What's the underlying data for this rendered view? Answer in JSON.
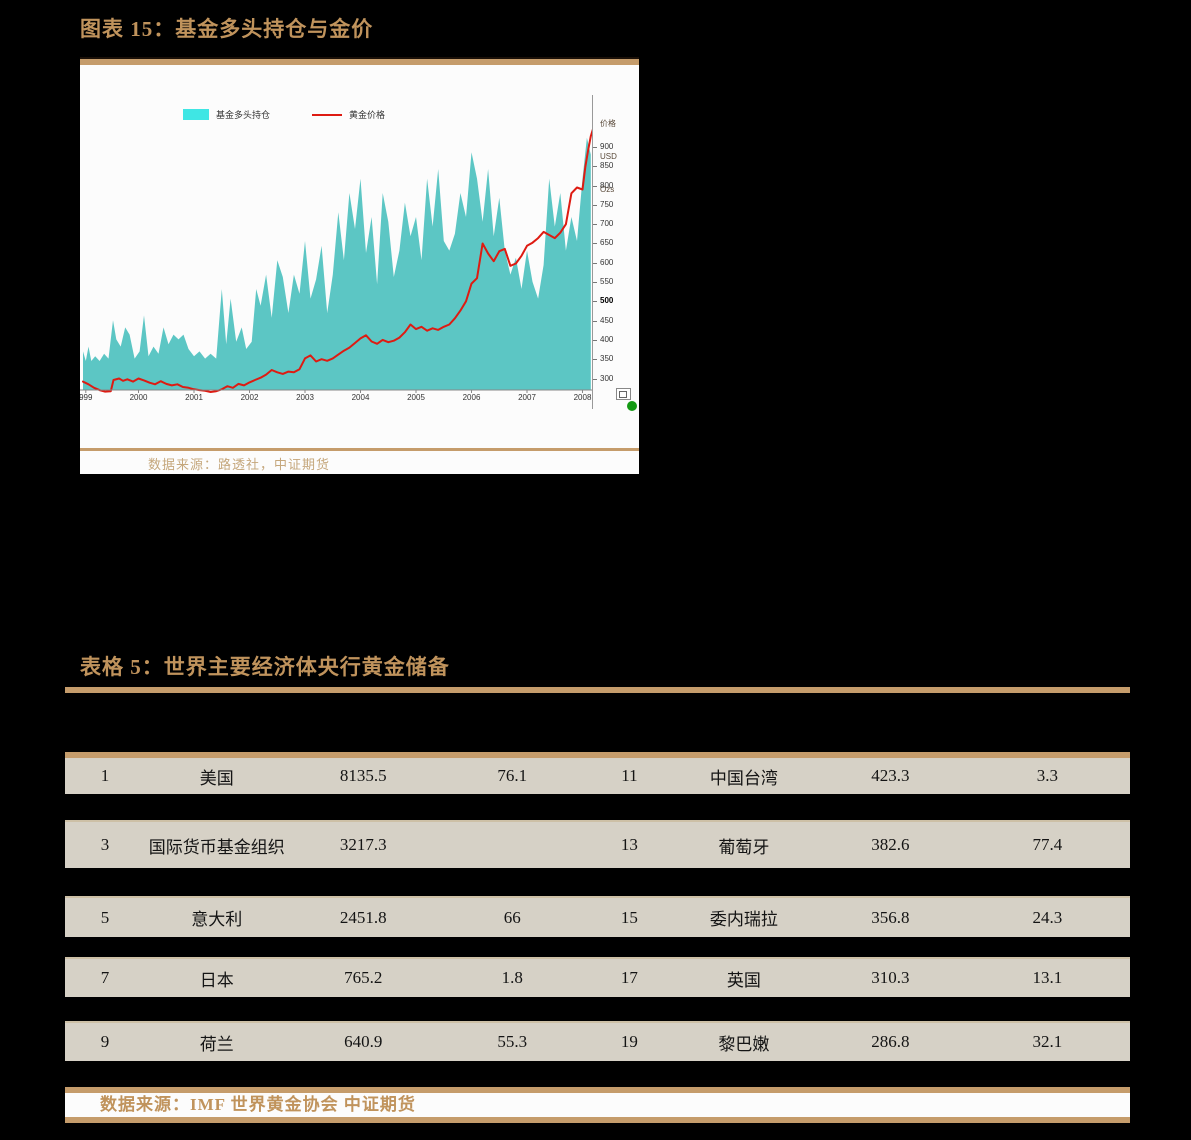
{
  "figure": {
    "title": "图表 15：基金多头持仓与金价",
    "source": "数据来源：路透社，中证期货",
    "legend": [
      {
        "label": "基金多头持仓",
        "swatch_color": "#3FE6E4",
        "type": "area"
      },
      {
        "label": "黄金价格",
        "swatch_color": "#DE1B12",
        "type": "line"
      }
    ],
    "y_axis_header": [
      "价格",
      "USD",
      "Ozs"
    ]
  },
  "chart_data": {
    "type": "area+line",
    "title": "基金多头持仓与金价",
    "x_tick_labels": [
      "999",
      "2000",
      "2001",
      "2002",
      "2003",
      "2004",
      "2005",
      "2006",
      "2007",
      "2008"
    ],
    "x_tick_years": [
      1999.05,
      2000,
      2001,
      2002,
      2003,
      2004,
      2005,
      2006,
      2007,
      2008
    ],
    "y_ticks_right": [
      300,
      350,
      400,
      450,
      500,
      550,
      600,
      650,
      700,
      750,
      800,
      850,
      900
    ],
    "y_right_label": "价格 USD Ozs",
    "x_range": [
      1999,
      2008.6
    ],
    "y_right_range": [
      300,
      960
    ],
    "grid": false,
    "legend_position": "top-left",
    "series": [
      {
        "name": "基金多头持仓",
        "type": "area",
        "color": "#5CC6C4",
        "unit": "持仓指数（左轴未标注）",
        "points": [
          [
            1999.0,
            14
          ],
          [
            1999.05,
            10
          ],
          [
            1999.1,
            16
          ],
          [
            1999.15,
            10
          ],
          [
            1999.22,
            12
          ],
          [
            1999.3,
            10
          ],
          [
            1999.38,
            13
          ],
          [
            1999.46,
            11
          ],
          [
            1999.54,
            27
          ],
          [
            1999.6,
            19
          ],
          [
            1999.68,
            16
          ],
          [
            1999.76,
            24
          ],
          [
            1999.84,
            21
          ],
          [
            1999.93,
            11
          ],
          [
            2000.02,
            14
          ],
          [
            2000.1,
            29
          ],
          [
            2000.18,
            12
          ],
          [
            2000.27,
            16
          ],
          [
            2000.36,
            13
          ],
          [
            2000.45,
            24
          ],
          [
            2000.54,
            17
          ],
          [
            2000.63,
            21
          ],
          [
            2000.72,
            19
          ],
          [
            2000.81,
            21
          ],
          [
            2000.9,
            15
          ],
          [
            2001.0,
            12
          ],
          [
            2001.1,
            14
          ],
          [
            2001.2,
            11
          ],
          [
            2001.3,
            13
          ],
          [
            2001.4,
            11
          ],
          [
            2001.5,
            40
          ],
          [
            2001.58,
            17
          ],
          [
            2001.66,
            36
          ],
          [
            2001.76,
            18
          ],
          [
            2001.86,
            24
          ],
          [
            2001.94,
            15
          ],
          [
            2002.04,
            18
          ],
          [
            2002.12,
            40
          ],
          [
            2002.2,
            33
          ],
          [
            2002.3,
            46
          ],
          [
            2002.4,
            28
          ],
          [
            2002.5,
            52
          ],
          [
            2002.6,
            45
          ],
          [
            2002.7,
            30
          ],
          [
            2002.8,
            46
          ],
          [
            2002.9,
            38
          ],
          [
            2003.0,
            60
          ],
          [
            2003.1,
            36
          ],
          [
            2003.2,
            44
          ],
          [
            2003.3,
            58
          ],
          [
            2003.4,
            30
          ],
          [
            2003.5,
            46
          ],
          [
            2003.6,
            72
          ],
          [
            2003.7,
            52
          ],
          [
            2003.8,
            80
          ],
          [
            2003.9,
            65
          ],
          [
            2004.0,
            86
          ],
          [
            2004.1,
            55
          ],
          [
            2004.2,
            70
          ],
          [
            2004.3,
            42
          ],
          [
            2004.4,
            80
          ],
          [
            2004.5,
            68
          ],
          [
            2004.6,
            45
          ],
          [
            2004.7,
            56
          ],
          [
            2004.8,
            76
          ],
          [
            2004.9,
            62
          ],
          [
            2005.0,
            70
          ],
          [
            2005.1,
            52
          ],
          [
            2005.2,
            86
          ],
          [
            2005.3,
            66
          ],
          [
            2005.4,
            90
          ],
          [
            2005.5,
            60
          ],
          [
            2005.6,
            56
          ],
          [
            2005.7,
            63
          ],
          [
            2005.8,
            80
          ],
          [
            2005.9,
            70
          ],
          [
            2006.0,
            97
          ],
          [
            2006.1,
            86
          ],
          [
            2006.2,
            68
          ],
          [
            2006.3,
            90
          ],
          [
            2006.4,
            62
          ],
          [
            2006.5,
            78
          ],
          [
            2006.6,
            56
          ],
          [
            2006.7,
            46
          ],
          [
            2006.8,
            53
          ],
          [
            2006.9,
            40
          ],
          [
            2007.0,
            56
          ],
          [
            2007.1,
            43
          ],
          [
            2007.2,
            36
          ],
          [
            2007.3,
            50
          ],
          [
            2007.4,
            86
          ],
          [
            2007.5,
            66
          ],
          [
            2007.6,
            80
          ],
          [
            2007.7,
            56
          ],
          [
            2007.8,
            70
          ],
          [
            2007.9,
            60
          ],
          [
            2008.0,
            86
          ],
          [
            2008.08,
            103
          ],
          [
            2008.15,
            96
          ]
        ]
      },
      {
        "name": "黄金价格",
        "type": "line",
        "color": "#DE1B12",
        "unit": "USD/Ozs",
        "points": [
          [
            1999.0,
            292
          ],
          [
            1999.1,
            285
          ],
          [
            1999.2,
            276
          ],
          [
            1999.3,
            270
          ],
          [
            1999.4,
            266
          ],
          [
            1999.5,
            267
          ],
          [
            1999.55,
            296
          ],
          [
            1999.65,
            300
          ],
          [
            1999.72,
            294
          ],
          [
            1999.8,
            298
          ],
          [
            1999.9,
            292
          ],
          [
            2000.0,
            300
          ],
          [
            2000.1,
            295
          ],
          [
            2000.2,
            289
          ],
          [
            2000.3,
            285
          ],
          [
            2000.4,
            293
          ],
          [
            2000.5,
            286
          ],
          [
            2000.6,
            282
          ],
          [
            2000.7,
            285
          ],
          [
            2000.8,
            278
          ],
          [
            2000.9,
            276
          ],
          [
            2001.0,
            272
          ],
          [
            2001.1,
            270
          ],
          [
            2001.2,
            268
          ],
          [
            2001.3,
            265
          ],
          [
            2001.4,
            267
          ],
          [
            2001.5,
            272
          ],
          [
            2001.6,
            280
          ],
          [
            2001.7,
            276
          ],
          [
            2001.8,
            286
          ],
          [
            2001.9,
            282
          ],
          [
            2002.0,
            290
          ],
          [
            2002.1,
            296
          ],
          [
            2002.2,
            302
          ],
          [
            2002.3,
            310
          ],
          [
            2002.4,
            322
          ],
          [
            2002.5,
            316
          ],
          [
            2002.6,
            312
          ],
          [
            2002.7,
            318
          ],
          [
            2002.8,
            316
          ],
          [
            2002.9,
            324
          ],
          [
            2003.0,
            352
          ],
          [
            2003.1,
            360
          ],
          [
            2003.2,
            344
          ],
          [
            2003.3,
            350
          ],
          [
            2003.4,
            346
          ],
          [
            2003.5,
            352
          ],
          [
            2003.6,
            362
          ],
          [
            2003.7,
            372
          ],
          [
            2003.8,
            380
          ],
          [
            2003.9,
            392
          ],
          [
            2004.0,
            404
          ],
          [
            2004.1,
            412
          ],
          [
            2004.2,
            396
          ],
          [
            2004.3,
            390
          ],
          [
            2004.4,
            400
          ],
          [
            2004.5,
            394
          ],
          [
            2004.6,
            398
          ],
          [
            2004.7,
            406
          ],
          [
            2004.8,
            420
          ],
          [
            2004.9,
            440
          ],
          [
            2005.0,
            428
          ],
          [
            2005.1,
            434
          ],
          [
            2005.2,
            424
          ],
          [
            2005.3,
            430
          ],
          [
            2005.4,
            426
          ],
          [
            2005.5,
            434
          ],
          [
            2005.6,
            440
          ],
          [
            2005.7,
            456
          ],
          [
            2005.8,
            476
          ],
          [
            2005.9,
            500
          ],
          [
            2006.0,
            546
          ],
          [
            2006.1,
            560
          ],
          [
            2006.2,
            650
          ],
          [
            2006.3,
            624
          ],
          [
            2006.4,
            604
          ],
          [
            2006.5,
            630
          ],
          [
            2006.6,
            636
          ],
          [
            2006.7,
            592
          ],
          [
            2006.8,
            598
          ],
          [
            2006.9,
            618
          ],
          [
            2007.0,
            644
          ],
          [
            2007.1,
            652
          ],
          [
            2007.2,
            664
          ],
          [
            2007.3,
            680
          ],
          [
            2007.4,
            672
          ],
          [
            2007.5,
            664
          ],
          [
            2007.6,
            678
          ],
          [
            2007.7,
            700
          ],
          [
            2007.8,
            780
          ],
          [
            2007.9,
            795
          ],
          [
            2008.0,
            790
          ],
          [
            2008.05,
            848
          ],
          [
            2008.1,
            890
          ],
          [
            2008.15,
            928
          ],
          [
            2008.2,
            952
          ],
          [
            2008.25,
            950
          ]
        ]
      }
    ]
  },
  "table": {
    "title": "表格 5：世界主要经济体央行黄金储备",
    "source": "数据来源：IMF 世界黄金协会 中证期货",
    "rows": [
      [
        "1",
        "美国",
        "8135.5",
        "76.1",
        "11",
        "中国台湾",
        "423.3",
        "3.3"
      ],
      [
        "3",
        "国际货币基金组织",
        "3217.3",
        "",
        "13",
        "葡萄牙",
        "382.6",
        "77.4"
      ],
      [
        "5",
        "意大利",
        "2451.8",
        "66",
        "15",
        "委内瑞拉",
        "356.8",
        "24.3"
      ],
      [
        "7",
        "日本",
        "765.2",
        "1.8",
        "17",
        "英国",
        "310.3",
        "13.1"
      ],
      [
        "9",
        "荷兰",
        "640.9",
        "55.3",
        "19",
        "黎巴嫩",
        "286.8",
        "32.1"
      ]
    ]
  }
}
